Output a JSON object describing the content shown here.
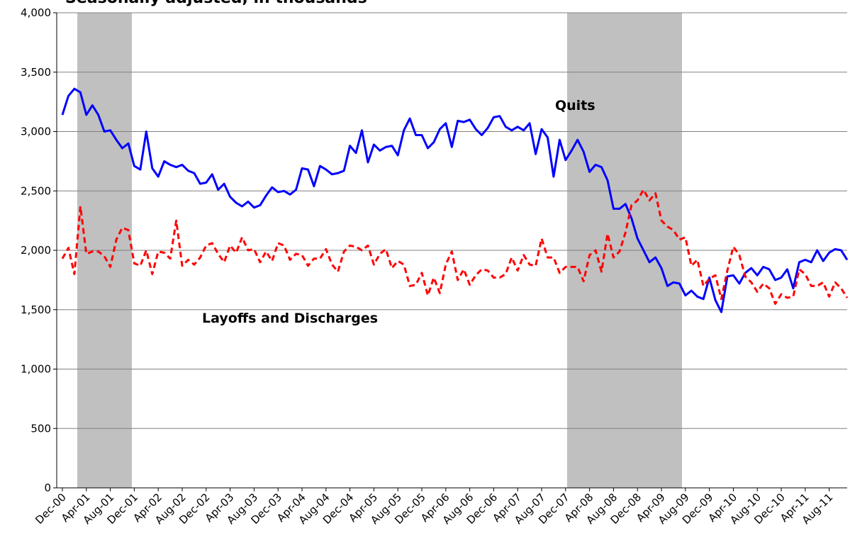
{
  "chart_data": {
    "type": "line",
    "title": "Seasonally adjusted, in thousands",
    "annotations": [
      "Quits",
      "Layoffs and Discharges"
    ],
    "categories": [
      "Dec-00",
      null,
      null,
      null,
      "Apr-01",
      null,
      null,
      null,
      "Aug-01",
      null,
      null,
      null,
      "Dec-01",
      null,
      null,
      null,
      "Apr-02",
      null,
      null,
      null,
      "Aug-02",
      null,
      null,
      null,
      "Dec-02",
      null,
      null,
      null,
      "Apr-03",
      null,
      null,
      null,
      "Aug-03",
      null,
      null,
      null,
      "Dec-03",
      null,
      null,
      null,
      "Apr-04",
      null,
      null,
      null,
      "Aug-04",
      null,
      null,
      null,
      "Dec-04",
      null,
      null,
      null,
      "Apr-05",
      null,
      null,
      null,
      "Aug-05",
      null,
      null,
      null,
      "Dec-05",
      null,
      null,
      null,
      "Apr-06",
      null,
      null,
      null,
      "Aug-06",
      null,
      null,
      null,
      "Dec-06",
      null,
      null,
      null,
      "Apr-07",
      null,
      null,
      null,
      "Aug-07",
      null,
      null,
      null,
      "Dec-07",
      null,
      null,
      null,
      "Apr-08",
      null,
      null,
      null,
      "Aug-08",
      null,
      null,
      null,
      "Dec-08",
      null,
      null,
      null,
      "Apr-09",
      null,
      null,
      null,
      "Aug-09",
      null,
      null,
      null,
      "Dec-09",
      null,
      null,
      null,
      "Apr-10",
      null,
      null,
      null,
      "Aug-10",
      null,
      null,
      null,
      "Dec-10",
      null,
      null,
      null,
      "Apr-11",
      null,
      null,
      null,
      "Aug-11",
      null,
      null,
      null
    ],
    "series": [
      {
        "name": "Quits",
        "color": "#0000ff",
        "style": "solid",
        "values": [
          3140,
          3300,
          3360,
          3330,
          3140,
          3220,
          3140,
          3000,
          3010,
          2930,
          2860,
          2900,
          2710,
          2680,
          3000,
          2690,
          2620,
          2750,
          2720,
          2700,
          2720,
          2670,
          2650,
          2560,
          2570,
          2640,
          2510,
          2560,
          2450,
          2400,
          2370,
          2410,
          2360,
          2380,
          2460,
          2530,
          2490,
          2500,
          2470,
          2510,
          2690,
          2680,
          2540,
          2710,
          2680,
          2640,
          2650,
          2670,
          2880,
          2820,
          3010,
          2740,
          2890,
          2840,
          2870,
          2880,
          2800,
          3010,
          3110,
          2970,
          2970,
          2860,
          2910,
          3020,
          3070,
          2870,
          3090,
          3080,
          3100,
          3020,
          2970,
          3030,
          3120,
          3130,
          3040,
          3010,
          3040,
          3010,
          3070,
          2810,
          3020,
          2950,
          2620,
          2930,
          2760,
          2840,
          2930,
          2830,
          2660,
          2720,
          2700,
          2590,
          2350,
          2350,
          2390,
          2270,
          2100,
          2000,
          1900,
          1940,
          1850,
          1700,
          1730,
          1720,
          1620,
          1660,
          1610,
          1590,
          1770,
          1580,
          1480,
          1780,
          1790,
          1720,
          1810,
          1850,
          1790,
          1860,
          1840,
          1750,
          1770,
          1840,
          1680,
          1900,
          1920,
          1900,
          2000,
          1910,
          1980,
          2010,
          2000,
          1920
        ]
      },
      {
        "name": "Layoffs and Discharges",
        "color": "#ff0000",
        "style": "dashed",
        "values": [
          1930,
          2020,
          1800,
          2370,
          1970,
          1990,
          1990,
          1950,
          1860,
          2090,
          2190,
          2170,
          1890,
          1870,
          2000,
          1800,
          1990,
          1980,
          1930,
          2250,
          1870,
          1920,
          1880,
          1940,
          2040,
          2060,
          1970,
          1900,
          2040,
          1980,
          2110,
          2000,
          2010,
          1900,
          1990,
          1910,
          2060,
          2040,
          1920,
          1970,
          1960,
          1870,
          1930,
          1930,
          2010,
          1880,
          1820,
          1990,
          2040,
          2030,
          2000,
          2040,
          1880,
          1970,
          2010,
          1850,
          1910,
          1880,
          1700,
          1710,
          1810,
          1620,
          1770,
          1640,
          1880,
          1990,
          1750,
          1840,
          1710,
          1790,
          1840,
          1830,
          1770,
          1770,
          1800,
          1940,
          1830,
          1960,
          1880,
          1870,
          2100,
          1940,
          1940,
          1810,
          1860,
          1860,
          1860,
          1740,
          1960,
          2000,
          1820,
          2140,
          1940,
          1990,
          2150,
          2380,
          2420,
          2510,
          2420,
          2480,
          2250,
          2200,
          2170,
          2090,
          2110,
          1870,
          1920,
          1700,
          1760,
          1790,
          1590,
          1830,
          2030,
          1960,
          1780,
          1730,
          1650,
          1720,
          1680,
          1550,
          1630,
          1600,
          1610,
          1840,
          1800,
          1700,
          1700,
          1730,
          1610,
          1730,
          1680,
          1600
        ]
      }
    ],
    "ylim": [
      0,
      4000
    ],
    "yticks": [
      0,
      {
        "value": 500,
        "label": "500"
      },
      {
        "value": 1000,
        "label": "1,000"
      },
      {
        "value": 1500,
        "label": "1,500"
      },
      {
        "value": 2000,
        "label": "2,000"
      },
      {
        "value": 2500,
        "label": "2,500"
      },
      {
        "value": 3000,
        "label": "3,000"
      },
      {
        "value": 3500,
        "label": "3,500"
      },
      {
        "value": 4000,
        "label": "4,000"
      }
    ],
    "grid": true
  }
}
